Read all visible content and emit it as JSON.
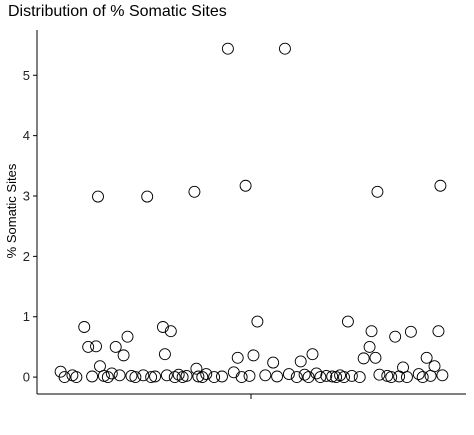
{
  "chart_data": {
    "type": "scatter",
    "title": "Distribution of % Somatic Sites",
    "xlabel": "",
    "ylabel": "% Somatic Sites",
    "ylim": [
      -0.28,
      5.75
    ],
    "yticks": [
      0,
      1,
      2,
      3,
      4,
      5
    ],
    "ytick_labels": [
      "0",
      "1",
      "2",
      "3",
      "4",
      "5"
    ],
    "grid": false,
    "legend": "none",
    "marker": "open-circle",
    "colors": {
      "marker_stroke": "#000000",
      "axis": "#000000"
    },
    "points": [
      {
        "x": 0.06,
        "y": 0.09
      },
      {
        "x": 0.07,
        "y": 0.0
      },
      {
        "x": 0.09,
        "y": 0.03
      },
      {
        "x": 0.1,
        "y": 0.0
      },
      {
        "x": 0.12,
        "y": 0.83
      },
      {
        "x": 0.13,
        "y": 0.5
      },
      {
        "x": 0.14,
        "y": 0.01
      },
      {
        "x": 0.15,
        "y": 0.51
      },
      {
        "x": 0.155,
        "y": 2.99
      },
      {
        "x": 0.16,
        "y": 0.18
      },
      {
        "x": 0.17,
        "y": 0.02
      },
      {
        "x": 0.18,
        "y": 0.0
      },
      {
        "x": 0.19,
        "y": 0.06
      },
      {
        "x": 0.2,
        "y": 0.5
      },
      {
        "x": 0.21,
        "y": 0.03
      },
      {
        "x": 0.22,
        "y": 0.36
      },
      {
        "x": 0.23,
        "y": 0.67
      },
      {
        "x": 0.24,
        "y": 0.02
      },
      {
        "x": 0.25,
        "y": 0.0
      },
      {
        "x": 0.27,
        "y": 0.03
      },
      {
        "x": 0.28,
        "y": 2.99
      },
      {
        "x": 0.29,
        "y": 0.0
      },
      {
        "x": 0.3,
        "y": 0.01
      },
      {
        "x": 0.32,
        "y": 0.83
      },
      {
        "x": 0.325,
        "y": 0.38
      },
      {
        "x": 0.33,
        "y": 0.03
      },
      {
        "x": 0.34,
        "y": 0.76
      },
      {
        "x": 0.35,
        "y": 0.0
      },
      {
        "x": 0.36,
        "y": 0.04
      },
      {
        "x": 0.37,
        "y": 0.0
      },
      {
        "x": 0.38,
        "y": 0.02
      },
      {
        "x": 0.4,
        "y": 3.07
      },
      {
        "x": 0.405,
        "y": 0.14
      },
      {
        "x": 0.41,
        "y": 0.01
      },
      {
        "x": 0.42,
        "y": 0.0
      },
      {
        "x": 0.43,
        "y": 0.05
      },
      {
        "x": 0.45,
        "y": 0.0
      },
      {
        "x": 0.47,
        "y": 0.01
      },
      {
        "x": 0.485,
        "y": 5.44
      },
      {
        "x": 0.5,
        "y": 0.08
      },
      {
        "x": 0.51,
        "y": 0.32
      },
      {
        "x": 0.52,
        "y": 0.0
      },
      {
        "x": 0.53,
        "y": 3.17
      },
      {
        "x": 0.54,
        "y": 0.02
      },
      {
        "x": 0.55,
        "y": 0.36
      },
      {
        "x": 0.56,
        "y": 0.92
      },
      {
        "x": 0.58,
        "y": 0.03
      },
      {
        "x": 0.6,
        "y": 0.24
      },
      {
        "x": 0.61,
        "y": 0.01
      },
      {
        "x": 0.63,
        "y": 5.44
      },
      {
        "x": 0.64,
        "y": 0.05
      },
      {
        "x": 0.66,
        "y": 0.0
      },
      {
        "x": 0.67,
        "y": 0.26
      },
      {
        "x": 0.68,
        "y": 0.04
      },
      {
        "x": 0.69,
        "y": 0.0
      },
      {
        "x": 0.7,
        "y": 0.38
      },
      {
        "x": 0.71,
        "y": 0.06
      },
      {
        "x": 0.72,
        "y": 0.0
      },
      {
        "x": 0.735,
        "y": 0.02
      },
      {
        "x": 0.75,
        "y": 0.01
      },
      {
        "x": 0.76,
        "y": 0.0
      },
      {
        "x": 0.77,
        "y": 0.03
      },
      {
        "x": 0.78,
        "y": 0.0
      },
      {
        "x": 0.79,
        "y": 0.92
      },
      {
        "x": 0.8,
        "y": 0.02
      },
      {
        "x": 0.82,
        "y": 0.0
      },
      {
        "x": 0.83,
        "y": 0.31
      },
      {
        "x": 0.845,
        "y": 0.5
      },
      {
        "x": 0.85,
        "y": 0.76
      },
      {
        "x": 0.86,
        "y": 0.32
      },
      {
        "x": 0.865,
        "y": 3.07
      },
      {
        "x": 0.87,
        "y": 0.04
      },
      {
        "x": 0.89,
        "y": 0.02
      },
      {
        "x": 0.9,
        "y": 0.0
      },
      {
        "x": 0.91,
        "y": 0.67
      },
      {
        "x": 0.92,
        "y": 0.01
      },
      {
        "x": 0.93,
        "y": 0.16
      },
      {
        "x": 0.94,
        "y": 0.0
      },
      {
        "x": 0.95,
        "y": 0.75
      },
      {
        "x": 0.97,
        "y": 0.05
      },
      {
        "x": 0.98,
        "y": 0.0
      },
      {
        "x": 0.99,
        "y": 0.32
      },
      {
        "x": 1.0,
        "y": 0.02
      },
      {
        "x": 1.01,
        "y": 0.18
      },
      {
        "x": 1.02,
        "y": 0.76
      },
      {
        "x": 1.025,
        "y": 3.17
      },
      {
        "x": 1.03,
        "y": 0.03
      }
    ]
  }
}
